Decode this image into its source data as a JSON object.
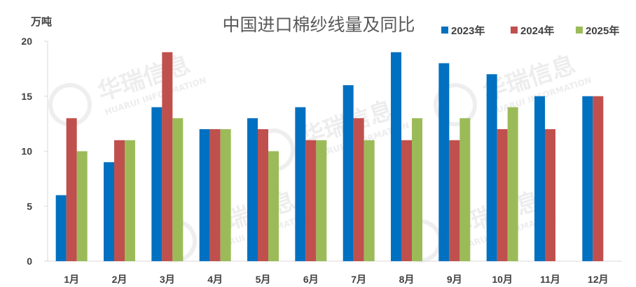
{
  "watermark": {
    "brand": "华瑞信息",
    "brand_en": "HUARUI INFORMATION"
  },
  "chart_data": {
    "type": "bar",
    "title": "中国进口棉纱线量及同比",
    "unit_label": "万吨",
    "categories": [
      "1月",
      "2月",
      "3月",
      "4月",
      "5月",
      "6月",
      "7月",
      "8月",
      "9月",
      "10月",
      "11月",
      "12月"
    ],
    "series": [
      {
        "name": "2023年",
        "color": "#0070C0",
        "values": [
          6,
          9,
          14,
          12,
          13,
          14,
          16,
          19,
          18,
          17,
          15,
          15
        ]
      },
      {
        "name": "2024年",
        "color": "#C0504D",
        "values": [
          13,
          11,
          19,
          12,
          12,
          11,
          13,
          11,
          11,
          12,
          12,
          15
        ]
      },
      {
        "name": "2025年",
        "color": "#9BBB59",
        "values": [
          10,
          11,
          13,
          12,
          10,
          11,
          11,
          13,
          13,
          14,
          null,
          null
        ]
      }
    ],
    "ylim": [
      0,
      20
    ],
    "yticks": [
      0,
      5,
      10,
      15,
      20
    ],
    "grid": false,
    "legend_position": "top-right"
  }
}
